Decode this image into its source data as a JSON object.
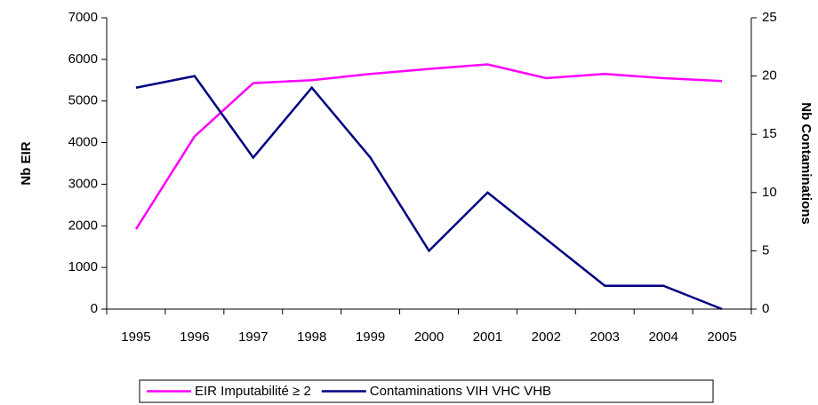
{
  "chart_data": {
    "type": "line",
    "categories": [
      "1995",
      "1996",
      "1997",
      "1998",
      "1999",
      "2000",
      "2001",
      "2002",
      "2003",
      "2004",
      "2005"
    ],
    "ylabel": "Nb EIR",
    "y2label": "Nb Contaminations",
    "ylim": [
      0,
      7000
    ],
    "yticks": [
      0,
      1000,
      2000,
      3000,
      4000,
      5000,
      6000,
      7000
    ],
    "y2lim": [
      0,
      25
    ],
    "y2ticks": [
      0,
      5,
      10,
      15,
      20,
      25
    ],
    "series": [
      {
        "name": "EIR Imputabilité ≥ 2",
        "color": "#ff00ff",
        "values": [
          1920,
          4150,
          5430,
          5500,
          5650,
          5770,
          5880,
          5550,
          5650,
          5550,
          5480
        ]
      },
      {
        "name": "Contaminations VIH VHC VHB",
        "color": "#000080",
        "axis": "y2",
        "values": [
          19,
          20,
          13,
          19,
          13,
          5,
          10,
          6,
          2,
          2,
          0
        ]
      }
    ],
    "grid": false,
    "legend": "bottom"
  }
}
